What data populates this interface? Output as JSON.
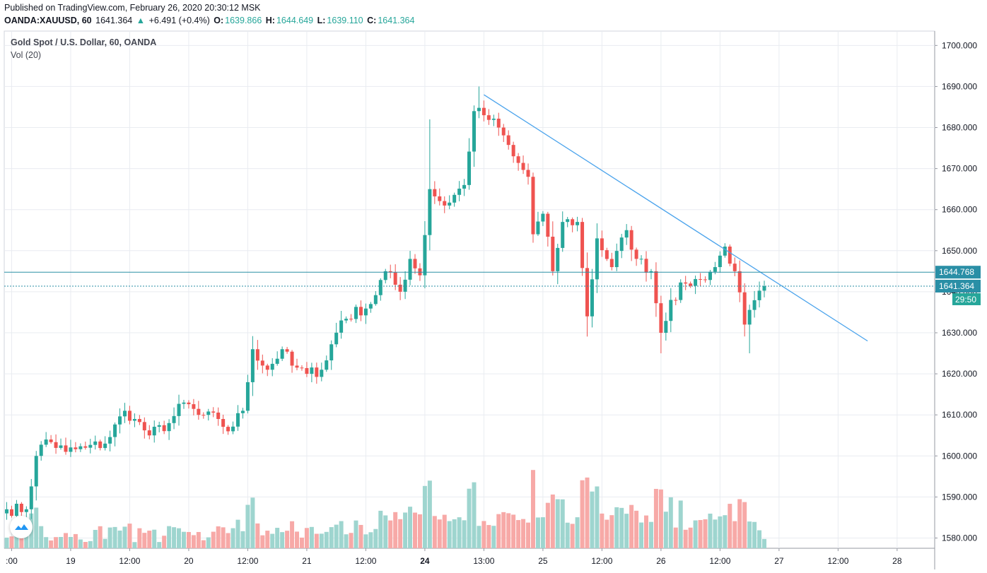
{
  "header": {
    "published": "Published on TradingView.com, February 26, 2020 20:30:12 MSK",
    "symbol": "OANDA:XAUUSD, 60",
    "last": "1641.364",
    "change": "+6.491 (+0.4%)",
    "o_label": "O:",
    "o_value": "1639.866",
    "h_label": "H:",
    "h_value": "1644.649",
    "l_label": "L:",
    "l_value": "1639.110",
    "c_label": "C:",
    "c_value": "1641.364"
  },
  "legend": {
    "title": "Gold Spot / U.S. Dollar, 60, OANDA",
    "volume": "Vol (20)"
  },
  "colors": {
    "up": "#26a69a",
    "down": "#ef5350",
    "vol_up": "#9ed5cf",
    "vol_down": "#f7a9a7",
    "trendline": "#4aa3ec",
    "hline": "#2a8fa6",
    "grid": "#e9ecf1"
  },
  "chart_data": {
    "type": "candlestick",
    "y_axis": {
      "range": [
        1577.5,
        1703.5
      ],
      "ticks": [
        "1580.000",
        "1590.000",
        "1600.000",
        "1610.000",
        "1620.000",
        "1630.000",
        "1640.000",
        "1650.000",
        "1660.000",
        "1670.000",
        "1680.000",
        "1690.000",
        "1700.000"
      ],
      "tick_values": [
        1580,
        1590,
        1600,
        1610,
        1620,
        1630,
        1640,
        1650,
        1660,
        1670,
        1680,
        1690,
        1700
      ]
    },
    "x_axis": {
      "bar_range": [
        0,
        156
      ],
      "labels": [
        {
          "text": ":00",
          "bar": 1,
          "bold": false
        },
        {
          "text": "19",
          "bar": 13,
          "bold": false
        },
        {
          "text": "12:00",
          "bar": 25,
          "bold": false
        },
        {
          "text": "20",
          "bar": 37,
          "bold": false
        },
        {
          "text": "12:00",
          "bar": 49,
          "bold": false
        },
        {
          "text": "21",
          "bar": 61,
          "bold": false
        },
        {
          "text": "12:00",
          "bar": 73,
          "bold": false
        },
        {
          "text": "24",
          "bar": 85,
          "bold": true
        },
        {
          "text": "13:00",
          "bar": 97,
          "bold": false
        },
        {
          "text": "25",
          "bar": 109,
          "bold": false
        },
        {
          "text": "12:00",
          "bar": 121,
          "bold": false
        },
        {
          "text": "26",
          "bar": 133,
          "bold": false
        },
        {
          "text": "12:00",
          "bar": 145,
          "bold": false
        },
        {
          "text": "27",
          "bar": 157,
          "bold": false
        },
        {
          "text": "12:00",
          "bar": 169,
          "bold": false
        },
        {
          "text": "28",
          "bar": 181,
          "bold": false
        }
      ]
    },
    "keypoints": [
      {
        "i": 0,
        "c": 1587
      },
      {
        "i": 4,
        "c": 1587
      },
      {
        "i": 6,
        "c": 1600
      },
      {
        "i": 8,
        "c": 1604
      },
      {
        "i": 12,
        "c": 1601
      },
      {
        "i": 16,
        "c": 1602
      },
      {
        "i": 20,
        "c": 1603
      },
      {
        "i": 24,
        "c": 1611
      },
      {
        "i": 26,
        "c": 1609
      },
      {
        "i": 29,
        "c": 1605
      },
      {
        "i": 33,
        "c": 1608
      },
      {
        "i": 36,
        "c": 1613
      },
      {
        "i": 39,
        "c": 1610
      },
      {
        "i": 43,
        "c": 1609
      },
      {
        "i": 45,
        "c": 1606
      },
      {
        "i": 48,
        "c": 1611
      },
      {
        "i": 50,
        "c": 1626
      },
      {
        "i": 53,
        "c": 1621
      },
      {
        "i": 56,
        "c": 1626
      },
      {
        "i": 58,
        "c": 1622
      },
      {
        "i": 61,
        "c": 1620
      },
      {
        "i": 64,
        "c": 1621
      },
      {
        "i": 68,
        "c": 1633
      },
      {
        "i": 74,
        "c": 1637
      },
      {
        "i": 77,
        "c": 1645
      },
      {
        "i": 80,
        "c": 1640
      },
      {
        "i": 82,
        "c": 1648
      },
      {
        "i": 84,
        "c": 1644
      },
      {
        "i": 86,
        "c": 1665
      },
      {
        "i": 89,
        "c": 1661
      },
      {
        "i": 93,
        "c": 1666
      },
      {
        "i": 95,
        "c": 1684
      },
      {
        "i": 97,
        "c": 1683
      },
      {
        "i": 100,
        "c": 1680
      },
      {
        "i": 103,
        "c": 1673
      },
      {
        "i": 106,
        "c": 1668
      },
      {
        "i": 107,
        "c": 1654
      },
      {
        "i": 109,
        "c": 1659
      },
      {
        "i": 111,
        "c": 1645
      },
      {
        "i": 113,
        "c": 1657
      },
      {
        "i": 116,
        "c": 1657
      },
      {
        "i": 118,
        "c": 1634
      },
      {
        "i": 120,
        "c": 1653
      },
      {
        "i": 123,
        "c": 1646
      },
      {
        "i": 126,
        "c": 1655
      },
      {
        "i": 128,
        "c": 1648
      },
      {
        "i": 131,
        "c": 1645
      },
      {
        "i": 133,
        "c": 1630
      },
      {
        "i": 135,
        "c": 1638
      },
      {
        "i": 138,
        "c": 1642
      },
      {
        "i": 141,
        "c": 1643
      },
      {
        "i": 144,
        "c": 1646
      },
      {
        "i": 146,
        "c": 1651
      },
      {
        "i": 148,
        "c": 1645
      },
      {
        "i": 150,
        "c": 1632
      },
      {
        "i": 154,
        "c": 1641.364
      }
    ],
    "levels": [
      {
        "name": "horizontal-line",
        "value": 1644.768,
        "label": "1644.768"
      },
      {
        "name": "last-price",
        "value": 1641.364,
        "label": "1641.364",
        "countdown": "29:50"
      }
    ],
    "trendline": {
      "from": {
        "bar": 97,
        "price": 1688.0
      },
      "to": {
        "bar": 175,
        "price": 1628.0
      }
    },
    "volume": {
      "max_scale": 1612,
      "seed": 7
    }
  }
}
